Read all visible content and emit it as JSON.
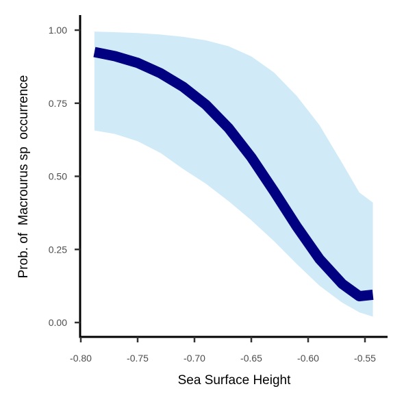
{
  "chart_data": {
    "type": "line",
    "title": "",
    "xlabel": "Sea Surface Height",
    "ylabel": "Prob. of  Macrourus sp  occurrence",
    "xlim": [
      -0.8,
      -0.533
    ],
    "ylim": [
      -0.05,
      1.05
    ],
    "x_ticks": [
      -0.8,
      -0.75,
      -0.7,
      -0.65,
      -0.6,
      -0.55
    ],
    "x_tick_labels": [
      "-0.80",
      "-0.75",
      "-0.70",
      "-0.65",
      "-0.60",
      "-0.55"
    ],
    "y_ticks": [
      0.0,
      0.25,
      0.5,
      0.75,
      1.0
    ],
    "y_tick_labels": [
      "0.00",
      "0.25",
      "0.50",
      "0.75",
      "1.00"
    ],
    "grid": false,
    "series": [
      {
        "type": "line",
        "x": [
          -0.788,
          -0.77,
          -0.75,
          -0.73,
          -0.71,
          -0.69,
          -0.67,
          -0.65,
          -0.63,
          -0.61,
          -0.59,
          -0.57,
          -0.555,
          -0.543
        ],
        "y": [
          0.925,
          0.911,
          0.888,
          0.853,
          0.806,
          0.745,
          0.665,
          0.565,
          0.449,
          0.328,
          0.217,
          0.132,
          0.09,
          0.095
        ],
        "color": "#000080"
      },
      {
        "type": "area",
        "x": [
          -0.788,
          -0.77,
          -0.75,
          -0.73,
          -0.71,
          -0.69,
          -0.67,
          -0.65,
          -0.63,
          -0.61,
          -0.59,
          -0.57,
          -0.555,
          -0.543
        ],
        "lower": [
          0.657,
          0.645,
          0.62,
          0.58,
          0.525,
          0.475,
          0.415,
          0.35,
          0.278,
          0.2,
          0.126,
          0.068,
          0.035,
          0.02
        ],
        "upper": [
          0.995,
          0.993,
          0.99,
          0.985,
          0.977,
          0.965,
          0.945,
          0.91,
          0.855,
          0.775,
          0.675,
          0.545,
          0.445,
          0.41
        ],
        "color": "#d0ebf7"
      }
    ]
  }
}
